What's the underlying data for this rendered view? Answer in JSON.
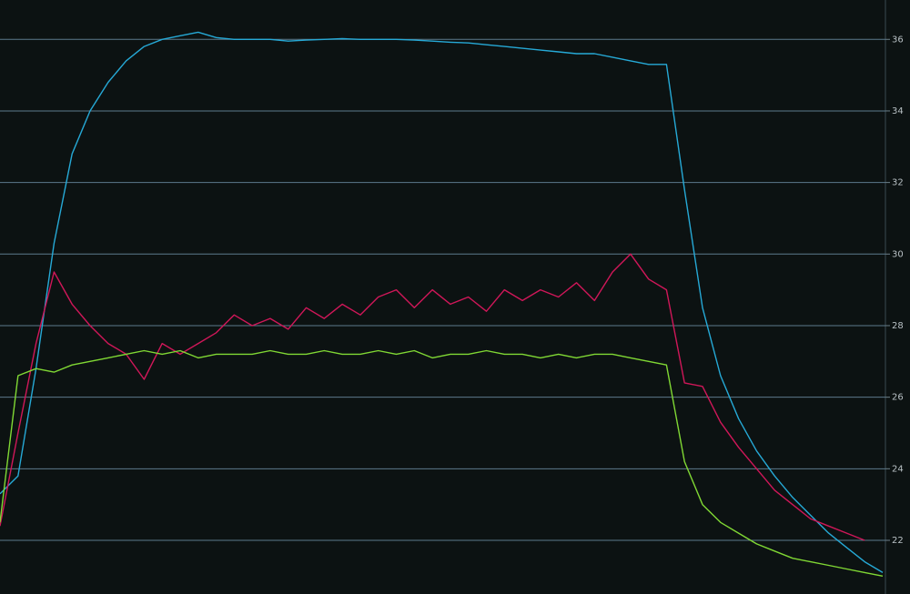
{
  "chart_data": {
    "type": "line",
    "series": [
      {
        "color": "#26a9d6",
        "values": [
          23.3,
          23.8,
          26.8,
          30.3,
          32.8,
          34,
          34.8,
          35.4,
          35.8,
          36,
          36.1,
          36.2,
          36.05,
          36,
          36,
          36,
          35.95,
          35.98,
          36,
          36.02,
          36,
          36,
          36,
          35.98,
          35.95,
          35.92,
          35.9,
          35.85,
          35.8,
          35.75,
          35.7,
          35.65,
          35.6,
          35.6,
          35.5,
          35.4,
          35.3,
          35.3,
          31.8,
          28.5,
          26.6,
          25.4,
          24.5,
          23.8,
          23.2,
          22.7,
          22.2,
          21.8,
          21.4,
          21.1
        ]
      },
      {
        "color": "#d01759",
        "values": [
          22.4,
          25,
          27.5,
          29.5,
          28.6,
          28,
          27.5,
          27.2,
          26.5,
          27.5,
          27.2,
          27.5,
          27.8,
          28.3,
          28,
          28.2,
          27.9,
          28.5,
          28.2,
          28.6,
          28.3,
          28.8,
          29,
          28.5,
          29,
          28.6,
          28.8,
          28.4,
          29,
          28.7,
          29,
          28.8,
          29.2,
          28.7,
          29.5,
          30,
          29.3,
          29,
          26.4,
          26.3,
          25.3,
          24.6,
          24,
          23.4,
          23,
          22.6,
          22.4,
          22.2,
          22,
          null
        ]
      },
      {
        "color": "#80d834",
        "values": [
          22.5,
          26.6,
          26.8,
          26.7,
          26.9,
          27,
          27.1,
          27.2,
          27.3,
          27.2,
          27.3,
          27.1,
          27.2,
          27.2,
          27.2,
          27.3,
          27.2,
          27.2,
          27.3,
          27.2,
          27.2,
          27.3,
          27.2,
          27.3,
          27.1,
          27.2,
          27.2,
          27.3,
          27.2,
          27.2,
          27.1,
          27.2,
          27.1,
          27.2,
          27.2,
          27.1,
          27,
          26.9,
          24.2,
          23,
          22.5,
          22.2,
          21.9,
          21.7,
          21.5,
          21.4,
          21.3,
          21.2,
          21.1,
          21
        ]
      }
    ],
    "ylim": [
      20.5,
      37.1
    ],
    "yticks": [
      22,
      24,
      26,
      28,
      30,
      32,
      34,
      36
    ],
    "grid": true
  }
}
